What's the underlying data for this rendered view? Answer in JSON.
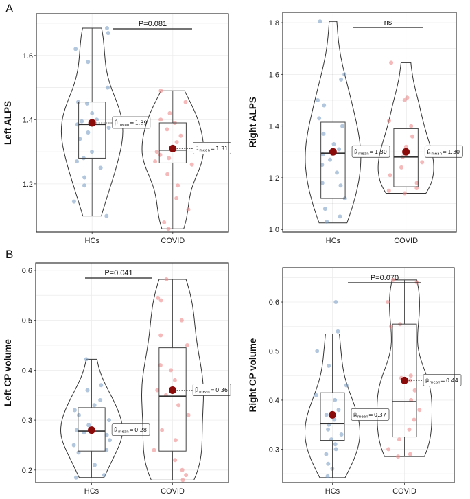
{
  "panel_labels": [
    "A",
    "B"
  ],
  "chart_data": [
    {
      "type": "violin-box",
      "ylabel": "Left ALPS",
      "categories": [
        "HCs",
        "COVID"
      ],
      "ylim": [
        1.05,
        1.73
      ],
      "yticks": [
        1.2,
        1.4,
        1.6
      ],
      "ytick_labels": [
        "1.2",
        "1.4",
        "1.6"
      ],
      "grid": true,
      "p_label": "P=0.081",
      "groups": [
        {
          "name": "HCs",
          "color": "#7ea1c7",
          "q1": 1.28,
          "median": 1.385,
          "q3": 1.455,
          "wmin": 1.1,
          "wmax": 1.685,
          "mean": 1.39,
          "mean_label": "1.39",
          "points": [
            1.685,
            1.67,
            1.62,
            1.58,
            1.5,
            1.455,
            1.45,
            1.42,
            1.4,
            1.395,
            1.385,
            1.375,
            1.36,
            1.34,
            1.3,
            1.28,
            1.27,
            1.25,
            1.22,
            1.195,
            1.145,
            1.1
          ]
        },
        {
          "name": "COVID",
          "color": "#ef8a8a",
          "q1": 1.265,
          "median": 1.305,
          "q3": 1.39,
          "wmin": 1.06,
          "wmax": 1.49,
          "mean": 1.31,
          "mean_label": "1.31",
          "points": [
            1.49,
            1.455,
            1.42,
            1.4,
            1.39,
            1.37,
            1.35,
            1.33,
            1.3,
            1.29,
            1.28,
            1.27,
            1.26,
            1.23,
            1.195,
            1.155,
            1.12,
            1.08,
            1.06
          ]
        }
      ]
    },
    {
      "type": "violin-box",
      "ylabel": "Right ALPS",
      "categories": [
        "HCs",
        "COVID"
      ],
      "ylim": [
        0.99,
        1.84
      ],
      "yticks": [
        1.0,
        1.2,
        1.4,
        1.6,
        1.8
      ],
      "ytick_labels": [
        "1.0",
        "1.2",
        "1.4",
        "1.6",
        "1.8"
      ],
      "grid": true,
      "p_label": "ns",
      "groups": [
        {
          "name": "HCs",
          "color": "#7ea1c7",
          "q1": 1.12,
          "median": 1.295,
          "q3": 1.415,
          "wmin": 1.025,
          "wmax": 1.805,
          "mean": 1.3,
          "mean_label": "1.30",
          "points": [
            1.805,
            1.6,
            1.58,
            1.5,
            1.48,
            1.43,
            1.4,
            1.37,
            1.33,
            1.31,
            1.29,
            1.27,
            1.25,
            1.22,
            1.18,
            1.17,
            1.12,
            1.08,
            1.05,
            1.03
          ]
        },
        {
          "name": "COVID",
          "color": "#ef8a8a",
          "q1": 1.165,
          "median": 1.28,
          "q3": 1.39,
          "wmin": 1.14,
          "wmax": 1.645,
          "mean": 1.3,
          "mean_label": "1.30",
          "points": [
            1.645,
            1.51,
            1.5,
            1.42,
            1.4,
            1.36,
            1.32,
            1.3,
            1.28,
            1.26,
            1.24,
            1.21,
            1.18,
            1.16,
            1.15,
            1.14
          ]
        }
      ]
    },
    {
      "type": "violin-box",
      "ylabel": "Left CP volume",
      "categories": [
        "HCs",
        "COVID"
      ],
      "ylim": [
        0.175,
        0.615
      ],
      "yticks": [
        0.2,
        0.3,
        0.4,
        0.5,
        0.6
      ],
      "ytick_labels": [
        "0.2",
        "0.3",
        "0.4",
        "0.5",
        "0.6"
      ],
      "grid": true,
      "p_label": "P=0.041",
      "groups": [
        {
          "name": "HCs",
          "color": "#7ea1c7",
          "q1": 0.238,
          "median": 0.278,
          "q3": 0.325,
          "wmin": 0.185,
          "wmax": 0.422,
          "mean": 0.28,
          "mean_label": "0.28",
          "points": [
            0.422,
            0.37,
            0.36,
            0.34,
            0.33,
            0.32,
            0.31,
            0.3,
            0.29,
            0.28,
            0.275,
            0.27,
            0.26,
            0.25,
            0.24,
            0.235,
            0.21,
            0.19,
            0.185
          ]
        },
        {
          "name": "COVID",
          "color": "#ef8a8a",
          "q1": 0.238,
          "median": 0.348,
          "q3": 0.445,
          "wmin": 0.18,
          "wmax": 0.582,
          "mean": 0.36,
          "mean_label": "0.36",
          "points": [
            0.582,
            0.545,
            0.54,
            0.5,
            0.47,
            0.45,
            0.41,
            0.4,
            0.38,
            0.36,
            0.35,
            0.33,
            0.31,
            0.28,
            0.26,
            0.24,
            0.22,
            0.2,
            0.19,
            0.18
          ]
        }
      ]
    },
    {
      "type": "violin-box",
      "ylabel": "Right CP volume",
      "categories": [
        "HCs",
        "COVID"
      ],
      "ylim": [
        0.232,
        0.67
      ],
      "yticks": [
        0.3,
        0.4,
        0.5,
        0.6
      ],
      "ytick_labels": [
        "0.3",
        "0.4",
        "0.5",
        "0.6"
      ],
      "grid": true,
      "p_label": "P=0.070",
      "groups": [
        {
          "name": "HCs",
          "color": "#7ea1c7",
          "q1": 0.318,
          "median": 0.352,
          "q3": 0.415,
          "wmin": 0.242,
          "wmax": 0.535,
          "mean": 0.37,
          "mean_label": "0.37",
          "points": [
            0.6,
            0.54,
            0.5,
            0.47,
            0.43,
            0.41,
            0.4,
            0.38,
            0.37,
            0.36,
            0.35,
            0.34,
            0.33,
            0.32,
            0.31,
            0.3,
            0.29,
            0.27,
            0.26,
            0.245
          ]
        },
        {
          "name": "COVID",
          "color": "#ef8a8a",
          "q1": 0.325,
          "median": 0.397,
          "q3": 0.555,
          "wmin": 0.285,
          "wmax": 0.645,
          "mean": 0.44,
          "mean_label": "0.44",
          "points": [
            0.645,
            0.64,
            0.6,
            0.555,
            0.55,
            0.45,
            0.445,
            0.44,
            0.42,
            0.4,
            0.38,
            0.36,
            0.34,
            0.32,
            0.3,
            0.29,
            0.285
          ]
        }
      ]
    }
  ]
}
